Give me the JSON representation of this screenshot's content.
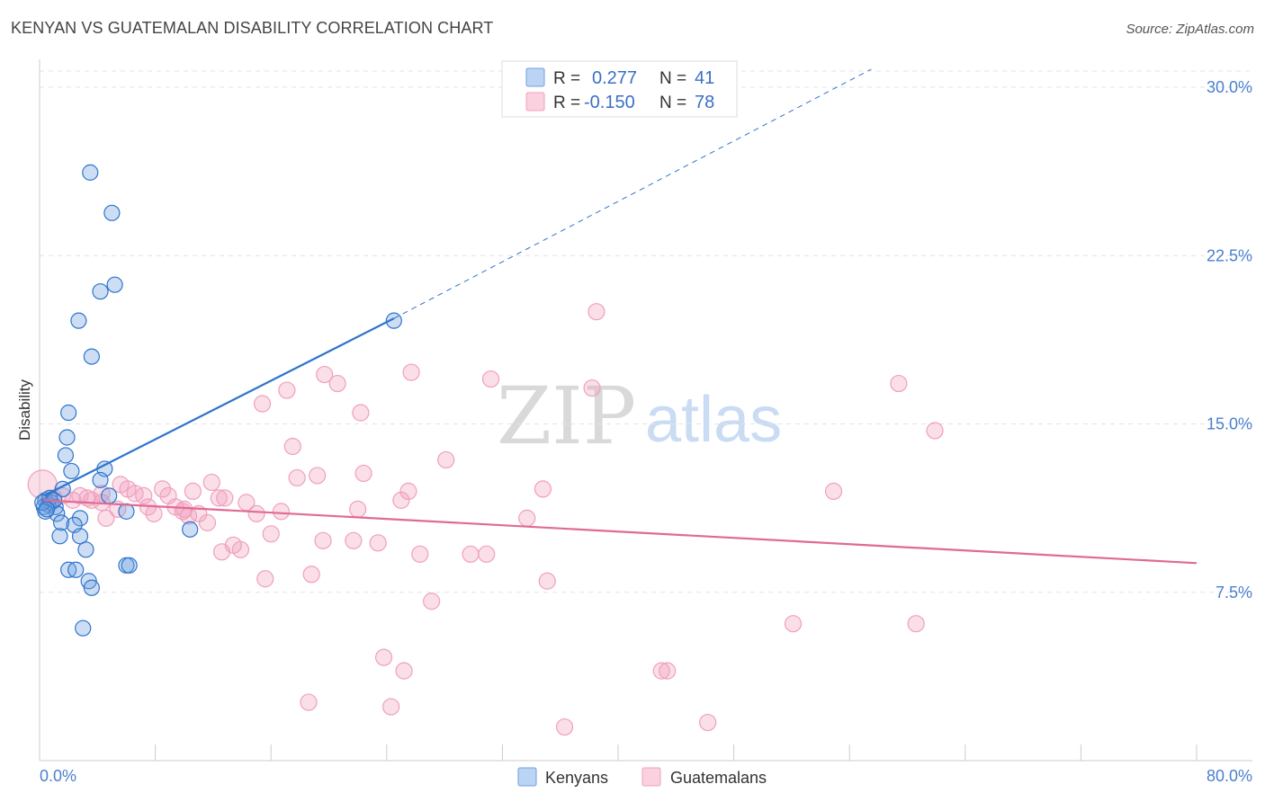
{
  "title": "KENYAN VS GUATEMALAN DISABILITY CORRELATION CHART",
  "source": "Source: ZipAtlas.com",
  "watermark": {
    "zip": "ZIP",
    "atlas": "atlas"
  },
  "colors": {
    "kenyans": "#6fa0e0",
    "kenyans_line": "#2f74cc",
    "guatemalans": "#f0a0bd",
    "guatemalans_line": "#e06a96",
    "tick": "#4a7fd0",
    "grid": "#e3e3e3"
  },
  "legend": {
    "r_label": "R =",
    "n_label": "N =",
    "kenyans": {
      "r": "0.277",
      "n": "41"
    },
    "guatemalans": {
      "r": "-0.150",
      "n": "78"
    }
  },
  "bottom_legend": {
    "kenyans": "Kenyans",
    "guatemalans": "Guatemalans"
  },
  "chart_data": {
    "type": "scatter",
    "title": "KENYAN VS GUATEMALAN DISABILITY CORRELATION CHART",
    "xlabel": "",
    "ylabel": "Disability",
    "xlim": [
      0,
      80
    ],
    "ylim": [
      0,
      30
    ],
    "x_tick_labels": [
      "0.0%",
      "80.0%"
    ],
    "y_ticks": [
      7.5,
      15.0,
      22.5,
      30.0
    ],
    "y_tick_labels": [
      "7.5%",
      "15.0%",
      "22.5%",
      "30.0%"
    ],
    "grid": true,
    "legend_placement": "top-center",
    "series": [
      {
        "name": "Kenyans",
        "r": 0.277,
        "n": 41,
        "trend": {
          "x": [
            0.3,
            24.5
          ],
          "y": [
            11.8,
            19.7
          ],
          "dashed_to": [
            57.5,
            30.8
          ]
        },
        "points": [
          [
            3.5,
            26.2
          ],
          [
            5.0,
            24.4
          ],
          [
            5.2,
            21.2
          ],
          [
            4.2,
            20.9
          ],
          [
            2.7,
            19.6
          ],
          [
            3.6,
            18.0
          ],
          [
            24.5,
            19.6
          ],
          [
            2.0,
            15.5
          ],
          [
            1.9,
            14.4
          ],
          [
            1.8,
            13.6
          ],
          [
            4.5,
            13.0
          ],
          [
            2.2,
            12.9
          ],
          [
            4.2,
            12.5
          ],
          [
            1.6,
            12.1
          ],
          [
            0.4,
            11.6
          ],
          [
            0.6,
            11.4
          ],
          [
            0.3,
            11.3
          ],
          [
            0.8,
            11.5
          ],
          [
            1.1,
            11.3
          ],
          [
            1.2,
            11.0
          ],
          [
            0.4,
            11.1
          ],
          [
            4.8,
            11.8
          ],
          [
            6.0,
            11.1
          ],
          [
            2.8,
            10.8
          ],
          [
            1.5,
            10.6
          ],
          [
            2.4,
            10.5
          ],
          [
            10.4,
            10.3
          ],
          [
            1.4,
            10.0
          ],
          [
            2.8,
            10.0
          ],
          [
            3.2,
            9.4
          ],
          [
            6.0,
            8.7
          ],
          [
            6.2,
            8.7
          ],
          [
            2.0,
            8.5
          ],
          [
            2.5,
            8.5
          ],
          [
            3.4,
            8.0
          ],
          [
            3.6,
            7.7
          ],
          [
            3.0,
            5.9
          ],
          [
            0.2,
            11.5
          ],
          [
            0.7,
            11.7
          ],
          [
            1.0,
            11.6
          ],
          [
            0.5,
            11.2
          ]
        ]
      },
      {
        "name": "Guatemalans",
        "r": -0.15,
        "n": 78,
        "trend": {
          "x": [
            0.3,
            80.0
          ],
          "y": [
            11.6,
            8.8
          ]
        },
        "points": [
          [
            0.2,
            12.3
          ],
          [
            38.5,
            20.0
          ],
          [
            25.7,
            17.3
          ],
          [
            19.7,
            17.2
          ],
          [
            31.2,
            17.0
          ],
          [
            20.6,
            16.8
          ],
          [
            17.1,
            16.5
          ],
          [
            38.2,
            16.6
          ],
          [
            59.4,
            16.8
          ],
          [
            15.4,
            15.9
          ],
          [
            22.2,
            15.5
          ],
          [
            61.9,
            14.7
          ],
          [
            17.5,
            14.0
          ],
          [
            28.1,
            13.4
          ],
          [
            22.4,
            12.8
          ],
          [
            19.2,
            12.7
          ],
          [
            17.8,
            12.6
          ],
          [
            11.9,
            12.4
          ],
          [
            34.8,
            12.1
          ],
          [
            54.9,
            12.0
          ],
          [
            25.5,
            12.0
          ],
          [
            8.5,
            12.1
          ],
          [
            10.6,
            12.0
          ],
          [
            6.1,
            12.1
          ],
          [
            6.6,
            11.9
          ],
          [
            8.9,
            11.8
          ],
          [
            7.2,
            11.8
          ],
          [
            12.8,
            11.7
          ],
          [
            5.6,
            12.3
          ],
          [
            3.3,
            11.7
          ],
          [
            4.3,
            11.5
          ],
          [
            2.3,
            11.6
          ],
          [
            1.0,
            11.7
          ],
          [
            1.6,
            11.8
          ],
          [
            2.8,
            11.8
          ],
          [
            25.0,
            11.6
          ],
          [
            14.3,
            11.5
          ],
          [
            7.5,
            11.3
          ],
          [
            9.4,
            11.3
          ],
          [
            10.0,
            11.2
          ],
          [
            16.7,
            11.1
          ],
          [
            22.0,
            11.2
          ],
          [
            11.0,
            11.0
          ],
          [
            7.9,
            11.0
          ],
          [
            15.0,
            11.0
          ],
          [
            4.6,
            10.8
          ],
          [
            10.3,
            10.9
          ],
          [
            11.6,
            10.6
          ],
          [
            33.7,
            10.8
          ],
          [
            16.0,
            10.1
          ],
          [
            19.6,
            9.8
          ],
          [
            21.7,
            9.8
          ],
          [
            13.4,
            9.6
          ],
          [
            13.9,
            9.4
          ],
          [
            12.6,
            9.3
          ],
          [
            23.4,
            9.7
          ],
          [
            26.3,
            9.2
          ],
          [
            29.8,
            9.2
          ],
          [
            30.9,
            9.2
          ],
          [
            18.8,
            8.3
          ],
          [
            15.6,
            8.1
          ],
          [
            35.1,
            8.0
          ],
          [
            27.1,
            7.1
          ],
          [
            52.1,
            6.1
          ],
          [
            60.6,
            6.1
          ],
          [
            23.8,
            4.6
          ],
          [
            25.2,
            4.0
          ],
          [
            43.0,
            4.0
          ],
          [
            43.4,
            4.0
          ],
          [
            18.6,
            2.6
          ],
          [
            24.3,
            2.4
          ],
          [
            36.3,
            1.5
          ],
          [
            46.2,
            1.7
          ],
          [
            4.3,
            11.9
          ],
          [
            3.6,
            11.6
          ],
          [
            5.4,
            11.2
          ],
          [
            12.4,
            11.7
          ],
          [
            9.9,
            11.1
          ]
        ]
      }
    ]
  }
}
